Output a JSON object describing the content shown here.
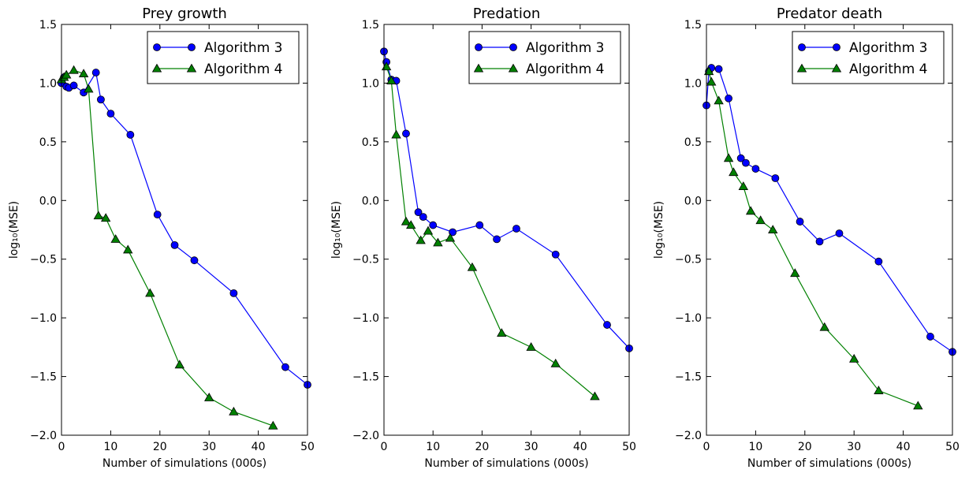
{
  "chart_data": [
    {
      "type": "line",
      "title": "Prey growth",
      "xlabel": "Number of simulations (000s)",
      "ylabel": "log₁₀(MSE)",
      "xlim": [
        0,
        50
      ],
      "ylim": [
        -2.0,
        1.5
      ],
      "xticks": [
        "0",
        "10",
        "20",
        "30",
        "40",
        "50"
      ],
      "yticks": [
        "1.5",
        "1.0",
        "0.5",
        "0.0",
        "−0.5",
        "−1.0",
        "−1.5",
        "−2.0"
      ],
      "grid": false,
      "legend": "top-right",
      "series": [
        {
          "name": "Algorithm 3",
          "marker": "circle",
          "color": "#0000ff",
          "x": [
            0,
            0.5,
            1,
            1.5,
            2.5,
            4.5,
            7,
            8,
            10,
            14,
            19.5,
            23,
            27,
            35,
            45.5,
            50
          ],
          "y": [
            1.0,
            1.05,
            0.97,
            0.96,
            0.98,
            0.92,
            1.09,
            0.86,
            0.74,
            0.56,
            -0.12,
            -0.38,
            -0.51,
            -0.79,
            -1.42,
            -1.57
          ]
        },
        {
          "name": "Algorithm 4",
          "marker": "triangle",
          "color": "#008000",
          "x": [
            0,
            0.5,
            1,
            2.5,
            4.5,
            5.5,
            7.5,
            9,
            11,
            13.5,
            18,
            24,
            30,
            35,
            43
          ],
          "y": [
            1.03,
            1.05,
            1.07,
            1.11,
            1.08,
            0.95,
            -0.13,
            -0.15,
            -0.33,
            -0.42,
            -0.79,
            -1.4,
            -1.68,
            -1.8,
            -1.92
          ]
        }
      ]
    },
    {
      "type": "line",
      "title": "Predation",
      "xlabel": "Number of simulations (000s)",
      "ylabel": "log₁₀(MSE)",
      "xlim": [
        0,
        50
      ],
      "ylim": [
        -2.0,
        1.5
      ],
      "xticks": [
        "0",
        "10",
        "20",
        "30",
        "40",
        "50"
      ],
      "yticks": [
        "1.5",
        "1.0",
        "0.5",
        "0.0",
        "−0.5",
        "−1.0",
        "−1.5",
        "−2.0"
      ],
      "grid": false,
      "legend": "top-right",
      "series": [
        {
          "name": "Algorithm 3",
          "marker": "circle",
          "color": "#0000ff",
          "x": [
            0,
            0.5,
            1.5,
            2.5,
            4.5,
            7,
            8,
            10,
            14,
            19.5,
            23,
            27,
            35,
            45.5,
            50
          ],
          "y": [
            1.27,
            1.18,
            1.03,
            1.02,
            0.57,
            -0.1,
            -0.14,
            -0.21,
            -0.27,
            -0.21,
            -0.33,
            -0.24,
            -0.46,
            -1.06,
            -1.26
          ]
        },
        {
          "name": "Algorithm 4",
          "marker": "triangle",
          "color": "#008000",
          "x": [
            0.5,
            1.5,
            2.5,
            4.5,
            5.5,
            7.5,
            9,
            11,
            13.5,
            18,
            24,
            30,
            35,
            43
          ],
          "y": [
            1.14,
            1.02,
            0.56,
            -0.18,
            -0.21,
            -0.34,
            -0.26,
            -0.36,
            -0.32,
            -0.57,
            -1.13,
            -1.25,
            -1.39,
            -1.67
          ]
        }
      ]
    },
    {
      "type": "line",
      "title": "Predator death",
      "xlabel": "Number of simulations (000s)",
      "ylabel": "log₁₀(MSE)",
      "xlim": [
        0,
        50
      ],
      "ylim": [
        -2.0,
        1.5
      ],
      "xticks": [
        "0",
        "10",
        "20",
        "30",
        "40",
        "50"
      ],
      "yticks": [
        "1.5",
        "1.0",
        "0.5",
        "0.0",
        "−0.5",
        "−1.0",
        "−1.5",
        "−2.0"
      ],
      "grid": false,
      "legend": "top-right",
      "series": [
        {
          "name": "Algorithm 3",
          "marker": "circle",
          "color": "#0000ff",
          "x": [
            0,
            0.5,
            1,
            2.5,
            4.5,
            7,
            8,
            10,
            14,
            19,
            23,
            27,
            35,
            45.5,
            50
          ],
          "y": [
            0.81,
            1.1,
            1.13,
            1.12,
            0.87,
            0.36,
            0.32,
            0.27,
            0.19,
            -0.18,
            -0.35,
            -0.28,
            -0.52,
            -1.16,
            -1.29
          ]
        },
        {
          "name": "Algorithm 4",
          "marker": "triangle",
          "color": "#008000",
          "x": [
            0.5,
            1,
            2.5,
            4.5,
            5.5,
            7.5,
            9,
            11,
            13.5,
            18,
            24,
            30,
            35,
            43
          ],
          "y": [
            1.1,
            1.01,
            0.85,
            0.36,
            0.24,
            0.12,
            -0.09,
            -0.17,
            -0.25,
            -0.62,
            -1.08,
            -1.35,
            -1.62,
            -1.75
          ]
        }
      ]
    }
  ]
}
